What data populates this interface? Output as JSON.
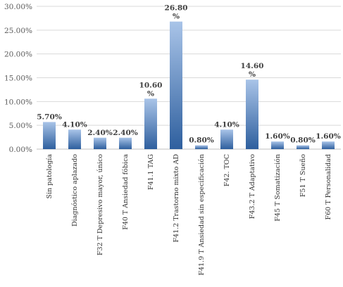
{
  "chart_data": {
    "type": "bar",
    "categories": [
      "Sin patología",
      "Diagnóstico aplazado",
      "F32 T Depresivo mayor, único",
      "F40 T Ansiedad fóbica",
      "F41.1 TAG",
      "F41.2 Trastorno mixto AD",
      "F41.9 T Ansiedad sin especificación",
      "F42. TOC",
      "F43.2 T Adaptativo",
      "F45 T Somatización",
      "F51 T Sueño",
      "F60 T Personalidad"
    ],
    "values": [
      5.7,
      4.1,
      2.4,
      2.4,
      10.6,
      26.8,
      0.8,
      4.1,
      14.6,
      1.6,
      0.8,
      1.6
    ],
    "data_labels": [
      [
        "5.70%"
      ],
      [
        "4.10%"
      ],
      [
        "2.40%"
      ],
      [
        "2.40%"
      ],
      [
        "10.60",
        "%"
      ],
      [
        "26.80",
        "%"
      ],
      [
        "0.80%"
      ],
      [
        "4.10%"
      ],
      [
        "14.60",
        "%"
      ],
      [
        "1.60%"
      ],
      [
        "0.80%"
      ],
      [
        "1.60%"
      ]
    ],
    "yticks": [
      "0.00%",
      "5.00%",
      "10.00%",
      "15.00%",
      "20.00%",
      "25.00%",
      "30.00%"
    ],
    "ylim": [
      0,
      30
    ],
    "ytick_step": 5,
    "grid": true,
    "legend": "none",
    "colors": {
      "bar_top": "#a9c4e8",
      "bar_bottom": "#2e5f9e"
    }
  }
}
